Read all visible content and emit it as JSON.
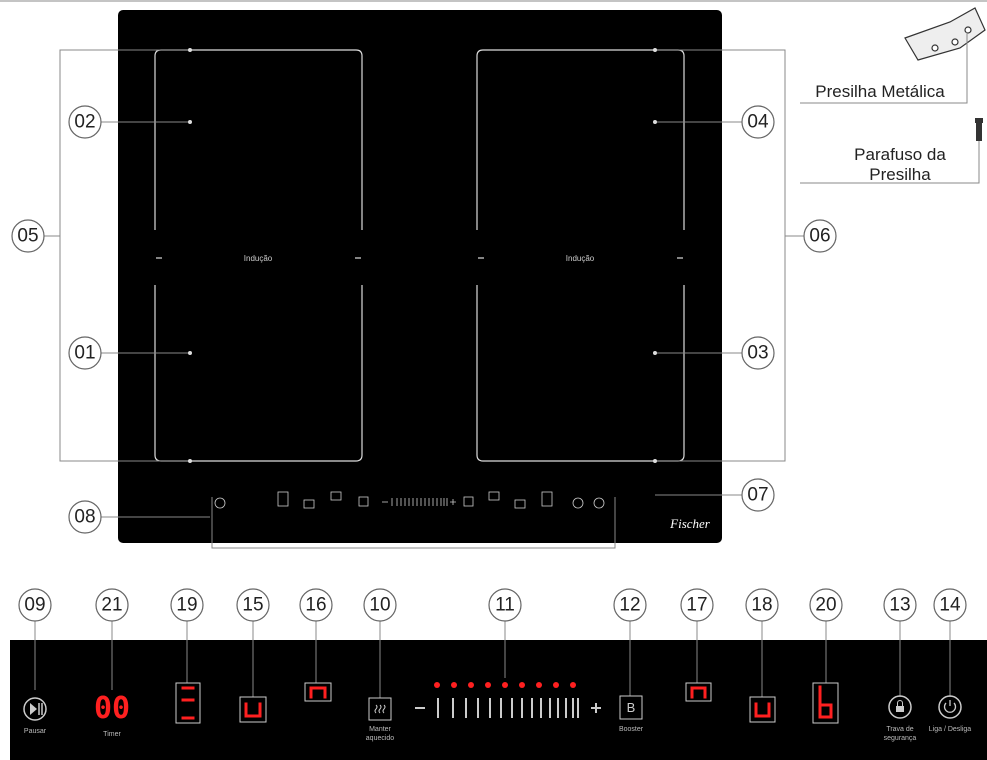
{
  "top_callouts": [
    "01",
    "02",
    "03",
    "04",
    "05",
    "06",
    "07",
    "08"
  ],
  "zone_label": "Indução",
  "brand": "Fischer",
  "parts": {
    "clip": "Presilha Metálica",
    "screw": [
      "Parafuso da",
      "Presilha"
    ]
  },
  "panel_callouts": [
    "09",
    "21",
    "19",
    "15",
    "16",
    "10",
    "11",
    "12",
    "17",
    "18",
    "20",
    "13",
    "14"
  ],
  "controls": {
    "pause": "Pausar",
    "timer": "Timer",
    "keep_warm": [
      "Manter",
      "aquecido"
    ],
    "booster_key": "B",
    "booster": "Booster",
    "lock": [
      "Trava de",
      "segurança"
    ],
    "power": "Liga / Desliga"
  },
  "displays": {
    "timer": "00"
  }
}
